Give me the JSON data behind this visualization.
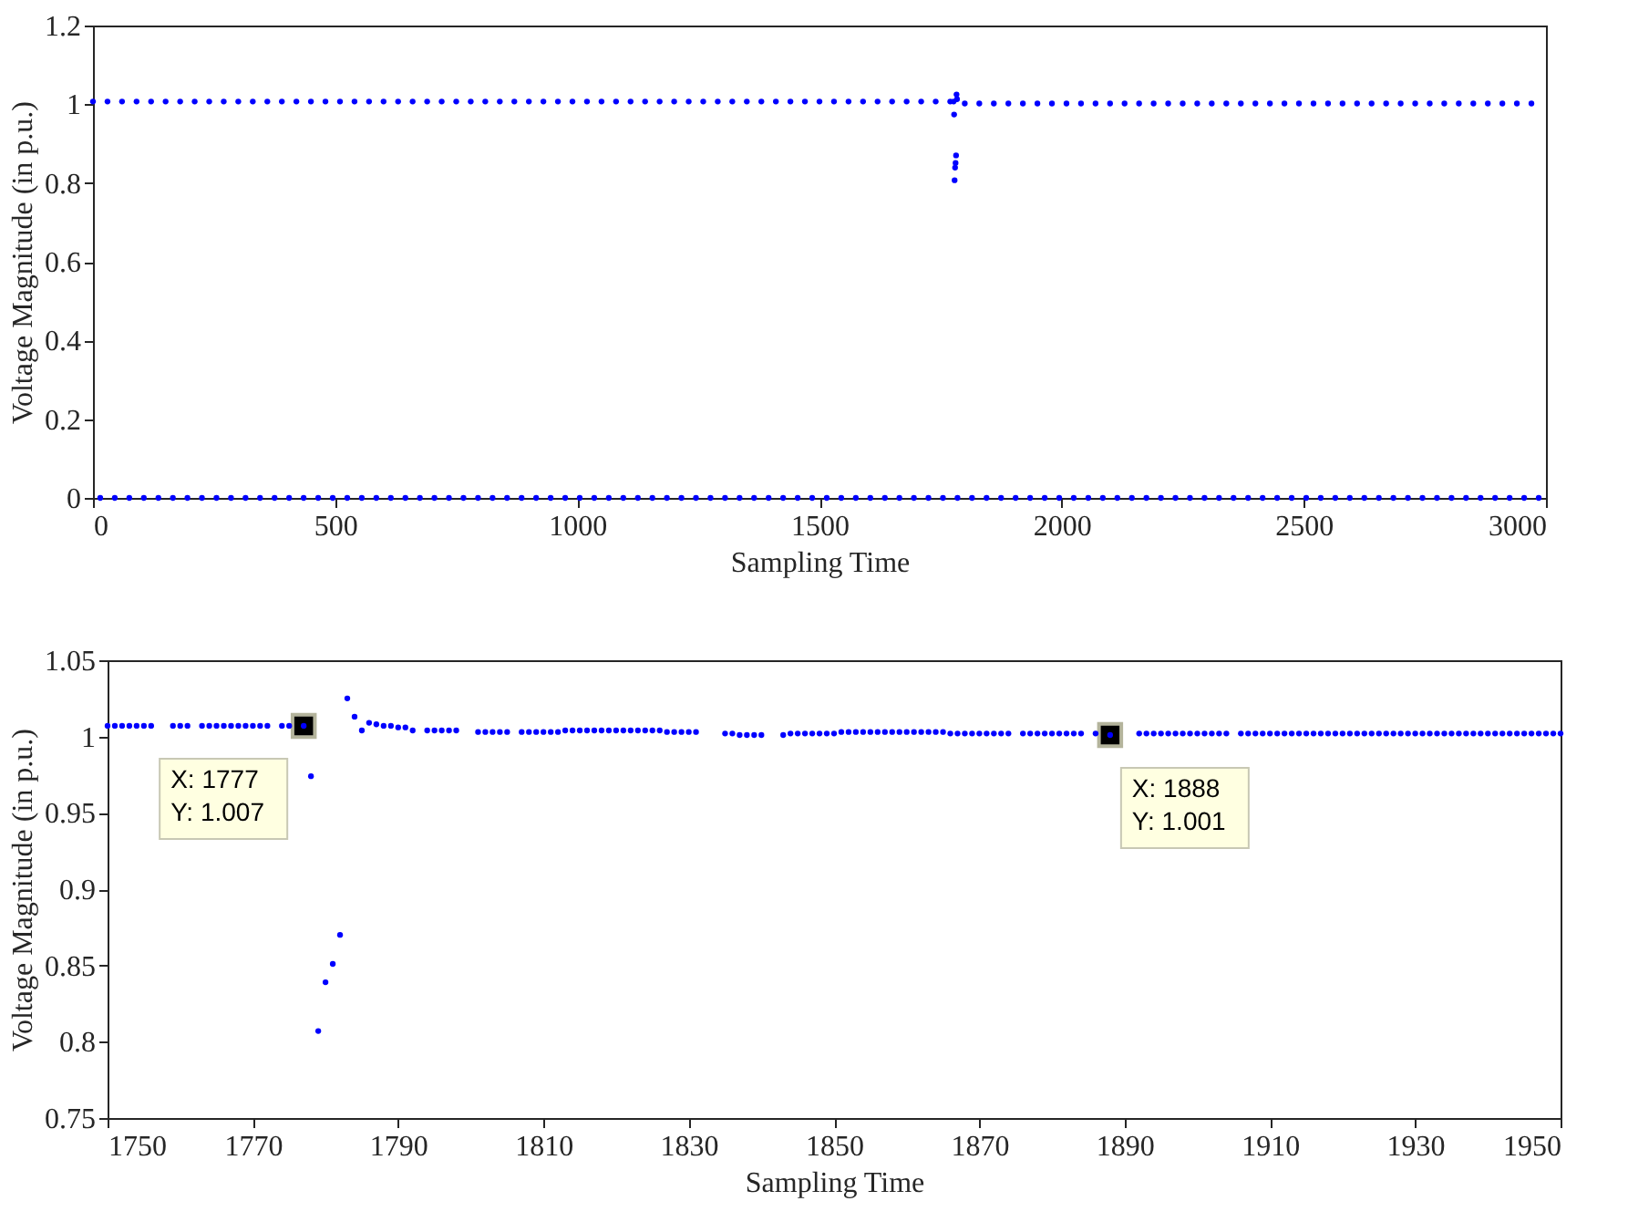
{
  "chart_data": [
    {
      "type": "scatter",
      "xlabel": "Sampling Time",
      "ylabel": "Voltage Magnitude (in p.u.)",
      "xlim": [
        0,
        3000
      ],
      "ylim": [
        0,
        1.2
      ],
      "xticks": [
        0,
        500,
        1000,
        1500,
        2000,
        2500,
        3000
      ],
      "yticks": [
        0,
        0.2,
        0.4,
        0.6,
        0.8,
        1,
        1.2
      ],
      "marker": "circle",
      "series": [
        {
          "color": "#0000ff",
          "x": [
            0,
            30,
            60,
            90,
            120,
            150,
            180,
            210,
            240,
            270,
            300,
            330,
            360,
            390,
            420,
            450,
            480,
            510,
            540,
            570,
            600,
            630,
            660,
            690,
            720,
            750,
            780,
            810,
            840,
            870,
            900,
            930,
            960,
            990,
            1020,
            1050,
            1080,
            1110,
            1140,
            1170,
            1200,
            1230,
            1260,
            1290,
            1320,
            1350,
            1380,
            1410,
            1440,
            1470,
            1500,
            1530,
            1560,
            1590,
            1620,
            1650,
            1680,
            1710,
            1740,
            1770,
            1777,
            1778,
            1779,
            1780,
            1781,
            1782,
            1783,
            1784,
            1800,
            1830,
            1860,
            1890,
            1920,
            1950,
            1980,
            2010,
            2040,
            2070,
            2100,
            2130,
            2160,
            2190,
            2220,
            2250,
            2280,
            2310,
            2340,
            2370,
            2400,
            2430,
            2460,
            2490,
            2520,
            2550,
            2580,
            2610,
            2640,
            2670,
            2700,
            2730,
            2760,
            2790,
            2820,
            2850,
            2880,
            2910,
            2940,
            2970
          ],
          "values": [
            1.007,
            1.007,
            1.007,
            1.007,
            1.007,
            1.007,
            1.007,
            1.007,
            1.007,
            1.007,
            1.007,
            1.007,
            1.007,
            1.007,
            1.007,
            1.007,
            1.007,
            1.007,
            1.007,
            1.007,
            1.007,
            1.007,
            1.007,
            1.007,
            1.007,
            1.007,
            1.007,
            1.007,
            1.007,
            1.007,
            1.007,
            1.007,
            1.007,
            1.007,
            1.007,
            1.007,
            1.007,
            1.007,
            1.007,
            1.007,
            1.007,
            1.007,
            1.007,
            1.007,
            1.007,
            1.007,
            1.007,
            1.007,
            1.007,
            1.007,
            1.007,
            1.007,
            1.007,
            1.007,
            1.007,
            1.007,
            1.007,
            1.007,
            1.007,
            1.007,
            1.007,
            0.974,
            0.807,
            0.839,
            0.851,
            0.87,
            1.025,
            1.013,
            1.002,
            1.002,
            1.002,
            1.002,
            1.002,
            1.002,
            1.002,
            1.002,
            1.002,
            1.002,
            1.002,
            1.002,
            1.002,
            1.002,
            1.002,
            1.002,
            1.002,
            1.002,
            1.002,
            1.002,
            1.002,
            1.002,
            1.002,
            1.002,
            1.002,
            1.002,
            1.002,
            1.002,
            1.002,
            1.002,
            1.002,
            1.002,
            1.002,
            1.002,
            1.002,
            1.002,
            1.002,
            1.002,
            1.002,
            1.002
          ]
        },
        {
          "color": "#0000ff",
          "x": [
            15,
            45,
            75,
            105,
            135,
            165,
            195,
            225,
            255,
            285,
            315,
            345,
            375,
            405,
            435,
            465,
            495,
            525,
            555,
            585,
            615,
            645,
            675,
            705,
            735,
            765,
            795,
            825,
            855,
            885,
            915,
            945,
            975,
            1005,
            1035,
            1065,
            1095,
            1125,
            1155,
            1185,
            1215,
            1245,
            1275,
            1305,
            1335,
            1365,
            1395,
            1425,
            1455,
            1485,
            1515,
            1545,
            1575,
            1605,
            1635,
            1665,
            1695,
            1725,
            1755,
            1785,
            1815,
            1845,
            1875,
            1905,
            1935,
            1965,
            1995,
            2025,
            2055,
            2085,
            2115,
            2145,
            2175,
            2205,
            2235,
            2265,
            2295,
            2325,
            2355,
            2385,
            2415,
            2445,
            2475,
            2505,
            2535,
            2565,
            2595,
            2625,
            2655,
            2685,
            2715,
            2745,
            2775,
            2805,
            2835,
            2865,
            2895,
            2925,
            2955,
            2985
          ],
          "values": [
            0,
            0,
            0,
            0,
            0,
            0,
            0,
            0,
            0,
            0,
            0,
            0,
            0,
            0,
            0,
            0,
            0,
            0,
            0,
            0,
            0,
            0,
            0,
            0,
            0,
            0,
            0,
            0,
            0,
            0,
            0,
            0,
            0,
            0,
            0,
            0,
            0,
            0,
            0,
            0,
            0,
            0,
            0,
            0,
            0,
            0,
            0,
            0,
            0,
            0,
            0,
            0,
            0,
            0,
            0,
            0,
            0,
            0,
            0,
            0,
            0,
            0,
            0,
            0,
            0,
            0,
            0,
            0,
            0,
            0,
            0,
            0,
            0,
            0,
            0,
            0,
            0,
            0,
            0,
            0,
            0,
            0,
            0,
            0,
            0,
            0,
            0,
            0,
            0,
            0,
            0,
            0,
            0,
            0,
            0,
            0,
            0,
            0,
            0,
            0
          ]
        }
      ]
    },
    {
      "type": "scatter",
      "xlabel": "Sampling Time",
      "ylabel": "Voltage Magnitude (in p.u.)",
      "xlim": [
        1750,
        1950
      ],
      "ylim": [
        0.75,
        1.05
      ],
      "xticks": [
        1750,
        1770,
        1790,
        1810,
        1830,
        1850,
        1870,
        1890,
        1910,
        1930,
        1950
      ],
      "yticks": [
        0.75,
        0.8,
        0.85,
        0.9,
        0.95,
        1,
        1.05
      ],
      "marker": "circle",
      "annotations": [
        {
          "text": "X: 1777\nY: 1.007",
          "x": 1777,
          "y": 1.007
        },
        {
          "text": "X: 1888\nY: 1.001",
          "x": 1888,
          "y": 1.001
        }
      ],
      "series": [
        {
          "color": "#0000ff",
          "x": [
            1750,
            1751,
            1752,
            1753,
            1754,
            1755,
            1756,
            1759,
            1760,
            1761,
            1763,
            1764,
            1765,
            1766,
            1767,
            1768,
            1769,
            1770,
            1771,
            1772,
            1774,
            1775,
            1777,
            1778,
            1779,
            1780,
            1781,
            1782,
            1783,
            1784,
            1785,
            1786,
            1787,
            1788,
            1789,
            1790,
            1791,
            1792,
            1794,
            1795,
            1796,
            1797,
            1798,
            1801,
            1802,
            1803,
            1804,
            1805,
            1807,
            1808,
            1809,
            1810,
            1811,
            1812,
            1813,
            1814,
            1815,
            1816,
            1817,
            1818,
            1819,
            1820,
            1821,
            1822,
            1823,
            1824,
            1825,
            1826,
            1827,
            1828,
            1829,
            1830,
            1831,
            1835,
            1836,
            1837,
            1838,
            1839,
            1840,
            1843,
            1844,
            1845,
            1846,
            1847,
            1848,
            1849,
            1850,
            1851,
            1852,
            1853,
            1854,
            1855,
            1856,
            1857,
            1858,
            1859,
            1860,
            1861,
            1862,
            1863,
            1864,
            1865,
            1866,
            1867,
            1868,
            1869,
            1870,
            1871,
            1872,
            1873,
            1874,
            1876,
            1877,
            1878,
            1879,
            1880,
            1881,
            1882,
            1883,
            1884,
            1886,
            1888,
            1892,
            1893,
            1894,
            1895,
            1896,
            1897,
            1898,
            1899,
            1900,
            1901,
            1902,
            1903,
            1904,
            1906,
            1907,
            1908,
            1909,
            1910,
            1911,
            1912,
            1913,
            1914,
            1915,
            1916,
            1917,
            1918,
            1919,
            1920,
            1921,
            1922,
            1923,
            1924,
            1925,
            1926,
            1927,
            1928,
            1929,
            1930,
            1931,
            1932,
            1933,
            1934,
            1935,
            1936,
            1937,
            1938,
            1939,
            1940,
            1941,
            1942,
            1943,
            1944,
            1945,
            1946,
            1947,
            1948,
            1949,
            1950
          ],
          "values": [
            1.007,
            1.007,
            1.007,
            1.007,
            1.007,
            1.007,
            1.007,
            1.007,
            1.007,
            1.007,
            1.007,
            1.007,
            1.007,
            1.007,
            1.007,
            1.007,
            1.007,
            1.007,
            1.007,
            1.007,
            1.007,
            1.007,
            1.007,
            0.974,
            0.807,
            0.839,
            0.851,
            0.87,
            1.025,
            1.013,
            1.004,
            1.009,
            1.008,
            1.007,
            1.007,
            1.006,
            1.006,
            1.004,
            1.004,
            1.004,
            1.004,
            1.004,
            1.004,
            1.003,
            1.003,
            1.003,
            1.003,
            1.003,
            1.003,
            1.003,
            1.003,
            1.003,
            1.003,
            1.003,
            1.004,
            1.004,
            1.004,
            1.004,
            1.004,
            1.004,
            1.004,
            1.004,
            1.004,
            1.004,
            1.004,
            1.004,
            1.004,
            1.004,
            1.003,
            1.003,
            1.003,
            1.003,
            1.003,
            1.002,
            1.002,
            1.001,
            1.001,
            1.001,
            1.001,
            1.001,
            1.002,
            1.002,
            1.002,
            1.002,
            1.002,
            1.002,
            1.002,
            1.003,
            1.003,
            1.003,
            1.003,
            1.003,
            1.003,
            1.003,
            1.003,
            1.003,
            1.003,
            1.003,
            1.003,
            1.003,
            1.003,
            1.003,
            1.002,
            1.002,
            1.002,
            1.002,
            1.002,
            1.002,
            1.002,
            1.002,
            1.002,
            1.002,
            1.002,
            1.002,
            1.002,
            1.002,
            1.002,
            1.002,
            1.002,
            1.002,
            1.002,
            1.001,
            1.002,
            1.002,
            1.002,
            1.002,
            1.002,
            1.002,
            1.002,
            1.002,
            1.002,
            1.002,
            1.002,
            1.002,
            1.002,
            1.002,
            1.002,
            1.002,
            1.002,
            1.002,
            1.002,
            1.002,
            1.002,
            1.002,
            1.002,
            1.002,
            1.002,
            1.002,
            1.002,
            1.002,
            1.002,
            1.002,
            1.002,
            1.002,
            1.002,
            1.002,
            1.002,
            1.002,
            1.002,
            1.002,
            1.002,
            1.002,
            1.002,
            1.002,
            1.002,
            1.002,
            1.002,
            1.002,
            1.002,
            1.002,
            1.002,
            1.002,
            1.002,
            1.002,
            1.002,
            1.002,
            1.002,
            1.002,
            1.002,
            1.002
          ]
        }
      ]
    }
  ]
}
